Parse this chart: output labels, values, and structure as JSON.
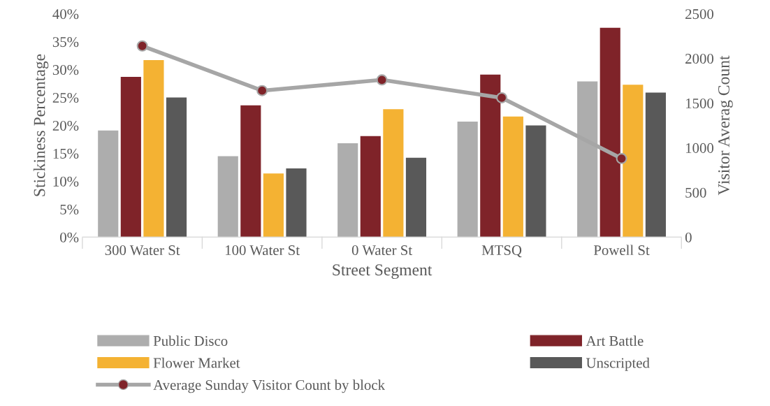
{
  "chart_data": {
    "type": "bar",
    "xlabel": "Street Segment",
    "ylabel": "Stickiness Percentage",
    "y2label": "Visitor Averag Count",
    "categories": [
      "300 Water St",
      "100 Water St",
      "0 Water St",
      "MTSQ",
      "Powell St"
    ],
    "series": [
      {
        "name": "Public Disco",
        "color": "#adadad",
        "values": [
          19.1,
          14.5,
          16.8,
          20.7,
          27.9
        ]
      },
      {
        "name": "Art Battle",
        "color": "#7f2329",
        "values": [
          28.7,
          23.6,
          18.1,
          29.1,
          37.5
        ]
      },
      {
        "name": "Flower Market",
        "color": "#f4b233",
        "values": [
          31.7,
          11.4,
          22.9,
          21.6,
          27.3
        ]
      },
      {
        "name": "Unscripted",
        "color": "#595959",
        "values": [
          25.0,
          12.3,
          14.2,
          20.0,
          25.9
        ]
      },
      {
        "name": "Average Sunday Visitor Count by block",
        "type": "line",
        "axis": "y2",
        "color": "#a6a6a6",
        "marker": "circle",
        "values": [
          2140,
          1640,
          1760,
          1560,
          880
        ]
      }
    ],
    "ylim": [
      0,
      40
    ],
    "yticks": [
      {
        "value": 0,
        "label": "0%"
      },
      {
        "value": 5,
        "label": "5%"
      },
      {
        "value": 10,
        "label": "10%"
      },
      {
        "value": 15,
        "label": "15%"
      },
      {
        "value": 20,
        "label": "20%"
      },
      {
        "value": 25,
        "label": "25%"
      },
      {
        "value": 30,
        "label": "30%"
      },
      {
        "value": 35,
        "label": "35%"
      },
      {
        "value": 40,
        "label": "40%"
      }
    ],
    "y2lim": [
      0,
      2500
    ],
    "y2ticks": [
      0,
      500,
      1000,
      1500,
      2000,
      2500
    ],
    "grid": false,
    "legend": "bottom"
  }
}
